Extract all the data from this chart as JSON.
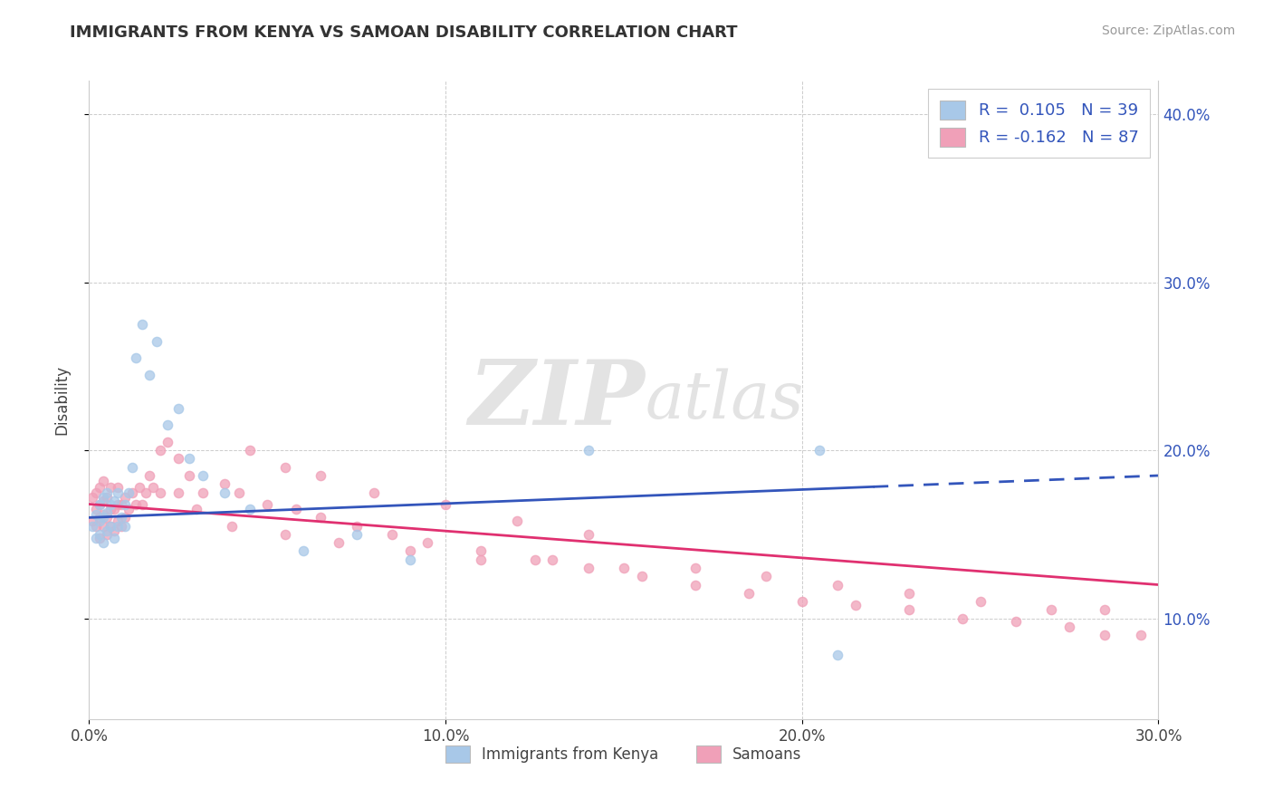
{
  "title": "IMMIGRANTS FROM KENYA VS SAMOAN DISABILITY CORRELATION CHART",
  "source": "Source: ZipAtlas.com",
  "ylabel": "Disability",
  "xlim": [
    0.0,
    0.3
  ],
  "ylim": [
    0.04,
    0.42
  ],
  "ytick_vals": [
    0.1,
    0.2,
    0.3,
    0.4
  ],
  "ytick_labels": [
    "10.0%",
    "20.0%",
    "30.0%",
    "40.0%"
  ],
  "xtick_vals": [
    0.0,
    0.1,
    0.2,
    0.3
  ],
  "xtick_labels": [
    "0.0%",
    "10.0%",
    "20.0%",
    "30.0%"
  ],
  "color_kenya": "#a8c8e8",
  "color_samoan": "#f0a0b8",
  "line_color_kenya": "#3355bb",
  "line_color_samoan": "#e03070",
  "watermark_zip": "ZIP",
  "watermark_atlas": "atlas",
  "legend_labels": [
    "R =  0.105   N = 39",
    "R = -0.162   N = 87"
  ],
  "legend_color": "#3355bb",
  "bottom_legend_labels": [
    "Immigrants from Kenya",
    "Samoans"
  ],
  "kenya_x": [
    0.001,
    0.002,
    0.002,
    0.003,
    0.003,
    0.003,
    0.004,
    0.004,
    0.004,
    0.005,
    0.005,
    0.005,
    0.006,
    0.006,
    0.007,
    0.007,
    0.008,
    0.008,
    0.009,
    0.01,
    0.01,
    0.011,
    0.012,
    0.013,
    0.015,
    0.017,
    0.019,
    0.022,
    0.025,
    0.028,
    0.032,
    0.038,
    0.045,
    0.06,
    0.075,
    0.09,
    0.14,
    0.205,
    0.21
  ],
  "kenya_y": [
    0.155,
    0.148,
    0.162,
    0.15,
    0.158,
    0.168,
    0.145,
    0.16,
    0.172,
    0.152,
    0.163,
    0.175,
    0.155,
    0.168,
    0.148,
    0.17,
    0.155,
    0.175,
    0.16,
    0.155,
    0.168,
    0.175,
    0.19,
    0.255,
    0.275,
    0.245,
    0.265,
    0.215,
    0.225,
    0.195,
    0.185,
    0.175,
    0.165,
    0.14,
    0.15,
    0.135,
    0.2,
    0.2,
    0.078
  ],
  "samoan_x": [
    0.001,
    0.001,
    0.002,
    0.002,
    0.002,
    0.003,
    0.003,
    0.003,
    0.003,
    0.004,
    0.004,
    0.004,
    0.004,
    0.005,
    0.005,
    0.005,
    0.006,
    0.006,
    0.006,
    0.007,
    0.007,
    0.008,
    0.008,
    0.008,
    0.009,
    0.009,
    0.01,
    0.01,
    0.011,
    0.012,
    0.013,
    0.014,
    0.015,
    0.016,
    0.017,
    0.018,
    0.02,
    0.022,
    0.025,
    0.028,
    0.032,
    0.038,
    0.042,
    0.05,
    0.058,
    0.065,
    0.075,
    0.085,
    0.095,
    0.11,
    0.125,
    0.14,
    0.155,
    0.17,
    0.185,
    0.2,
    0.215,
    0.23,
    0.245,
    0.26,
    0.275,
    0.285,
    0.02,
    0.025,
    0.03,
    0.04,
    0.055,
    0.07,
    0.09,
    0.11,
    0.13,
    0.15,
    0.17,
    0.19,
    0.21,
    0.23,
    0.25,
    0.27,
    0.285,
    0.295,
    0.045,
    0.055,
    0.065,
    0.08,
    0.1,
    0.12,
    0.14
  ],
  "samoan_y": [
    0.158,
    0.172,
    0.155,
    0.165,
    0.175,
    0.148,
    0.16,
    0.168,
    0.178,
    0.155,
    0.162,
    0.17,
    0.182,
    0.15,
    0.16,
    0.172,
    0.155,
    0.165,
    0.178,
    0.152,
    0.165,
    0.158,
    0.168,
    0.178,
    0.155,
    0.168,
    0.16,
    0.172,
    0.165,
    0.175,
    0.168,
    0.178,
    0.168,
    0.175,
    0.185,
    0.178,
    0.2,
    0.205,
    0.195,
    0.185,
    0.175,
    0.18,
    0.175,
    0.168,
    0.165,
    0.16,
    0.155,
    0.15,
    0.145,
    0.14,
    0.135,
    0.13,
    0.125,
    0.12,
    0.115,
    0.11,
    0.108,
    0.105,
    0.1,
    0.098,
    0.095,
    0.09,
    0.175,
    0.175,
    0.165,
    0.155,
    0.15,
    0.145,
    0.14,
    0.135,
    0.135,
    0.13,
    0.13,
    0.125,
    0.12,
    0.115,
    0.11,
    0.105,
    0.105,
    0.09,
    0.2,
    0.19,
    0.185,
    0.175,
    0.168,
    0.158,
    0.15
  ],
  "kenya_line_x": [
    0.0,
    0.3
  ],
  "samoan_line_x": [
    0.0,
    0.3
  ],
  "kenya_line_solid_end": 0.22,
  "kenya_line_y_start": 0.16,
  "kenya_line_y_end": 0.185,
  "samoan_line_y_start": 0.168,
  "samoan_line_y_end": 0.12
}
